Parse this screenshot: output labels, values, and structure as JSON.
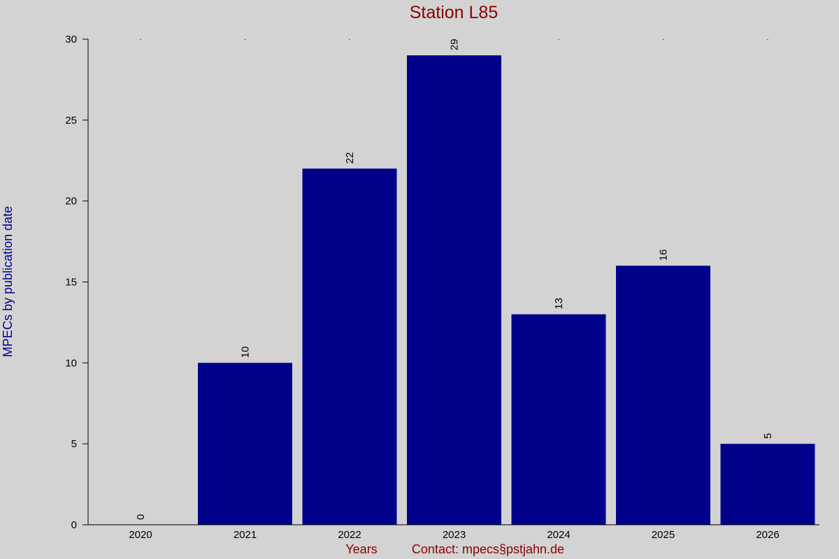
{
  "chart_data": {
    "type": "bar",
    "title": "Station L85",
    "xlabel": "Years",
    "ylabel": "MPECs by publication date",
    "footer_text": "Contact: mpecs§pstjahn.de",
    "categories": [
      "2020",
      "2021",
      "2022",
      "2023",
      "2024",
      "2025",
      "2026"
    ],
    "values": [
      0,
      10,
      22,
      29,
      13,
      16,
      5
    ],
    "ylim": [
      0,
      30
    ],
    "yticks": [
      "0",
      "5",
      "10",
      "15",
      "20",
      "25",
      "30"
    ],
    "data_labels": [
      "0",
      "10",
      "22",
      "29",
      "13",
      "16",
      "5"
    ],
    "grid": false,
    "legend": "none",
    "colors": {
      "bar": "#00008b",
      "background": "#d3d3d3",
      "title": "#8b0000",
      "xlabel": "#8b0000",
      "ylabel": "#00008b",
      "axis": "#000000"
    }
  }
}
